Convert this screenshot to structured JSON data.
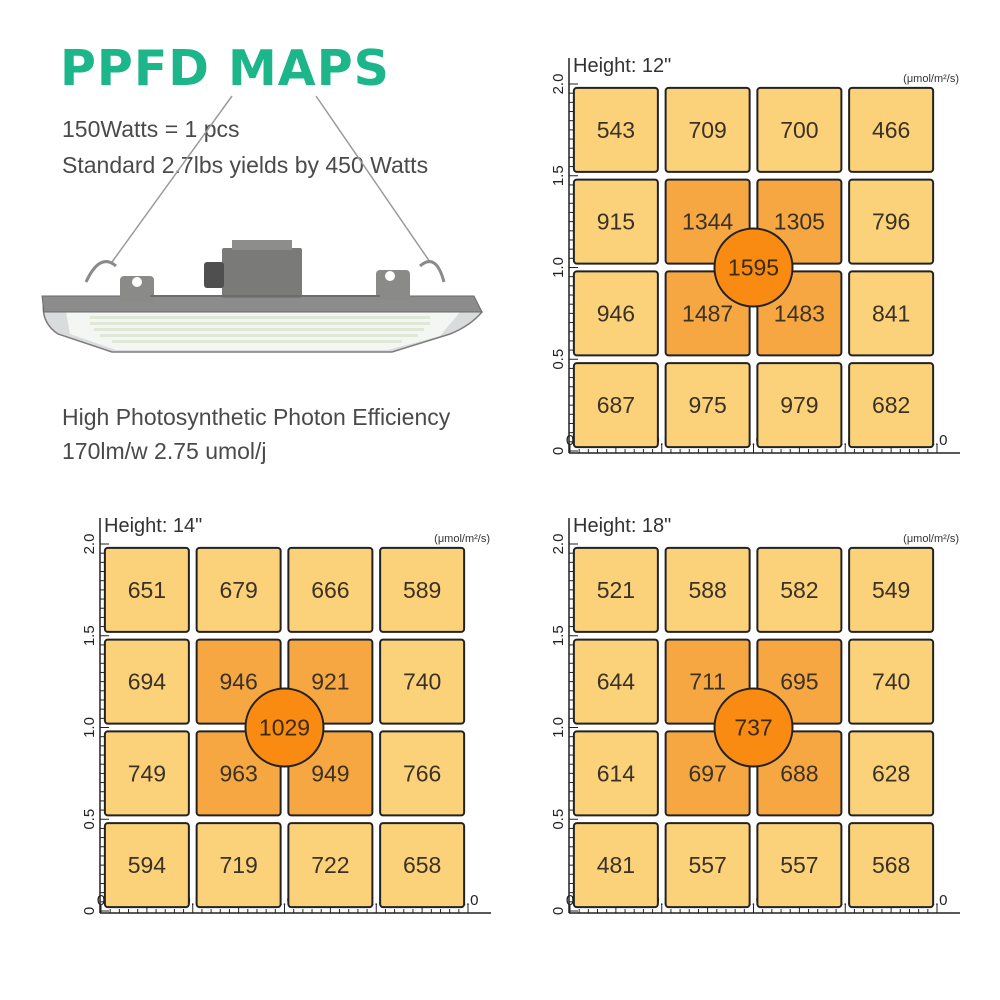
{
  "header": {
    "title": "PPFD MAPS",
    "spec_1": "150Watts = 1 pcs",
    "spec_2": "Standard 2.7lbs yields by 450 Watts",
    "efficiency_1": "High Photosynthetic Photon Efficiency",
    "efficiency_2": "170lm/w 2.75 umol/j"
  },
  "colors": {
    "title": "#1db58a",
    "cell_outer": "#fbd27a",
    "cell_inner": "#f7a742",
    "center_dot": "#f98a12",
    "border": "#222222"
  },
  "chart_data": [
    {
      "type": "heatmap",
      "title": "Height: 12\"",
      "unit": "(μmol/m²/s)",
      "x_ticks": [
        "0",
        "0.5",
        "1.0",
        "1.5",
        "2.0"
      ],
      "y_ticks": [
        "0",
        "0.5",
        "1.0",
        "1.5",
        "2.0"
      ],
      "xlim": [
        0,
        2.0
      ],
      "ylim": [
        0,
        2.0
      ],
      "grid": [
        [
          543,
          709,
          700,
          466
        ],
        [
          915,
          1344,
          1305,
          796
        ],
        [
          946,
          1487,
          1483,
          841
        ],
        [
          687,
          975,
          979,
          682
        ]
      ],
      "center_value": 1595
    },
    {
      "type": "heatmap",
      "title": "Height: 14\"",
      "unit": "(μmol/m²/s)",
      "x_ticks": [
        "0",
        "0.5",
        "1.0",
        "1.5",
        "2.0"
      ],
      "y_ticks": [
        "0",
        "0.5",
        "1.0",
        "1.5",
        "2.0"
      ],
      "xlim": [
        0,
        2.0
      ],
      "ylim": [
        0,
        2.0
      ],
      "grid": [
        [
          651,
          679,
          666,
          589
        ],
        [
          694,
          946,
          921,
          740
        ],
        [
          749,
          963,
          949,
          766
        ],
        [
          594,
          719,
          722,
          658
        ]
      ],
      "center_value": 1029
    },
    {
      "type": "heatmap",
      "title": "Height: 18\"",
      "unit": "(μmol/m²/s)",
      "x_ticks": [
        "0",
        "0.5",
        "1.0",
        "1.5",
        "2.0"
      ],
      "y_ticks": [
        "0",
        "0.5",
        "1.0",
        "1.5",
        "2.0"
      ],
      "xlim": [
        0,
        2.0
      ],
      "ylim": [
        0,
        2.0
      ],
      "grid": [
        [
          521,
          588,
          582,
          549
        ],
        [
          644,
          711,
          695,
          740
        ],
        [
          614,
          697,
          688,
          628
        ],
        [
          481,
          557,
          557,
          568
        ]
      ],
      "center_value": 737
    }
  ]
}
